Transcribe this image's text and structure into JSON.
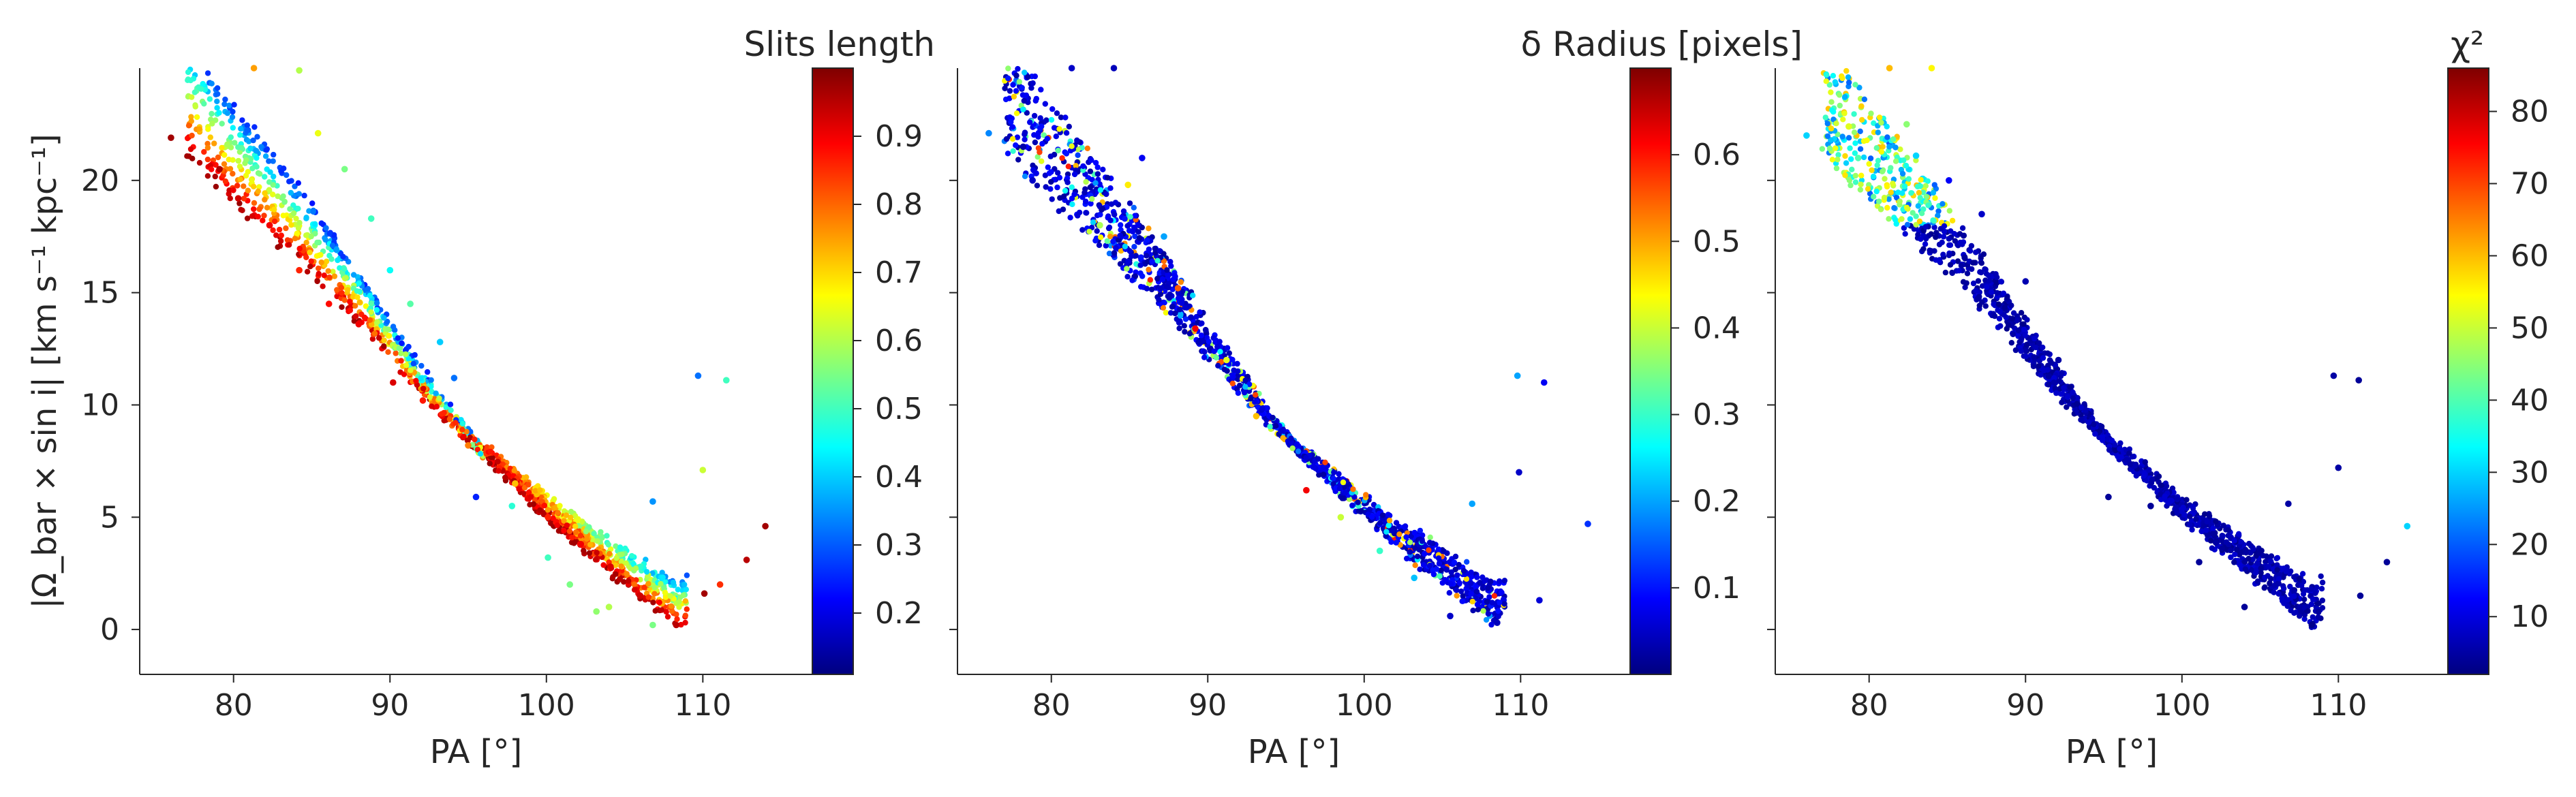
{
  "figure": {
    "panels": [
      {
        "id": "slits",
        "ylabel": "|Ω_bar × sin i|  [km s⁻¹ kpc⁻¹]",
        "xlabel": "PA [°]",
        "colorbar": {
          "title": "Slits length",
          "colormap": "jet",
          "range": [
            0.11,
            1.0
          ],
          "ticks": [
            0.2,
            0.3,
            0.4,
            0.5,
            0.6,
            0.7,
            0.8,
            0.9
          ],
          "tick_labels": [
            "0.2",
            "0.3",
            "0.4",
            "0.5",
            "0.6",
            "0.7",
            "0.8",
            "0.9"
          ]
        }
      },
      {
        "id": "delta-radius",
        "xlabel": "PA [°]",
        "colorbar": {
          "title": "δ Radius [pixels]",
          "colormap": "jet",
          "range": [
            0.0,
            0.7
          ],
          "ticks": [
            0.1,
            0.2,
            0.3,
            0.4,
            0.5,
            0.6
          ],
          "tick_labels": [
            "0.1",
            "0.2",
            "0.3",
            "0.4",
            "0.5",
            "0.6"
          ]
        }
      },
      {
        "id": "chi2",
        "xlabel": "PA [°]",
        "colorbar": {
          "title": "χ²",
          "colormap": "jet",
          "range": [
            2,
            86
          ],
          "ticks": [
            10,
            20,
            30,
            40,
            50,
            60,
            70,
            80
          ],
          "tick_labels": [
            "10",
            "20",
            "30",
            "40",
            "50",
            "60",
            "70",
            "80"
          ]
        }
      }
    ]
  },
  "chart_data": [
    {
      "type": "scatter",
      "title": "",
      "xlabel": "PA [°]",
      "ylabel": "|Ω_bar × sin i|  [km s⁻¹ kpc⁻¹]",
      "xlim": [
        74,
        117
      ],
      "ylim": [
        -2,
        25
      ],
      "xticks": [
        80,
        90,
        100,
        110
      ],
      "yticks": [
        0,
        5,
        10,
        15,
        20
      ],
      "color_variable": "Slits length",
      "color_range": [
        0.11,
        1.0
      ],
      "trend": {
        "x": [
          76,
          80,
          84,
          88,
          92,
          96,
          100,
          104,
          108.5,
          111,
          114
        ],
        "y": [
          22,
          19,
          16.5,
          13.7,
          10.5,
          7.8,
          5.0,
          2.6,
          0.1,
          1.8,
          4.6
        ]
      },
      "points": [
        [
          76.0,
          21.9,
          0.97
        ],
        [
          79.1,
          20.5,
          0.96
        ],
        [
          80.3,
          19.2,
          0.93
        ],
        [
          82.3,
          18.0,
          0.9
        ],
        [
          84.2,
          16.0,
          0.86
        ],
        [
          86.1,
          14.5,
          0.88
        ],
        [
          88.0,
          13.6,
          0.9
        ],
        [
          90.2,
          11.0,
          0.92
        ],
        [
          92.1,
          10.2,
          0.87
        ],
        [
          95.0,
          8.2,
          0.78
        ],
        [
          98.0,
          6.5,
          0.72
        ],
        [
          100.1,
          5.0,
          0.86
        ],
        [
          102.2,
          3.8,
          0.9
        ],
        [
          104.1,
          2.8,
          0.92
        ],
        [
          106.0,
          1.5,
          0.93
        ],
        [
          108.3,
          0.2,
          0.95
        ],
        [
          110.1,
          1.6,
          0.97
        ],
        [
          114.0,
          4.6,
          0.97
        ],
        [
          112.8,
          3.1,
          0.95
        ],
        [
          111.1,
          2.0,
          0.85
        ],
        [
          81.3,
          25.0,
          0.75
        ],
        [
          84.2,
          24.9,
          0.6
        ],
        [
          85.4,
          22.1,
          0.65
        ],
        [
          87.1,
          20.5,
          0.55
        ],
        [
          88.8,
          18.3,
          0.5
        ],
        [
          90.0,
          16.0,
          0.45
        ],
        [
          91.3,
          14.5,
          0.52
        ],
        [
          93.2,
          12.8,
          0.4
        ],
        [
          94.1,
          11.2,
          0.32
        ],
        [
          95.5,
          5.9,
          0.25
        ],
        [
          97.8,
          5.5,
          0.48
        ],
        [
          100.1,
          3.2,
          0.5
        ],
        [
          101.5,
          2.0,
          0.55
        ],
        [
          103.2,
          0.8,
          0.57
        ],
        [
          106.8,
          5.7,
          0.35
        ],
        [
          109.7,
          11.3,
          0.32
        ],
        [
          111.5,
          11.1,
          0.5
        ],
        [
          110.0,
          7.1,
          0.62
        ],
        [
          106.8,
          0.2,
          0.55
        ],
        [
          104.0,
          1.0,
          0.6
        ]
      ]
    },
    {
      "type": "scatter",
      "title": "",
      "xlabel": "PA [°]",
      "ylabel": "",
      "xlim": [
        74,
        117
      ],
      "ylim": [
        -2,
        25
      ],
      "xticks": [
        80,
        90,
        100,
        110
      ],
      "color_variable": "δ Radius [pixels]",
      "color_range": [
        0.0,
        0.7
      ],
      "trend": {
        "x": [
          76,
          80,
          84,
          88,
          92,
          96,
          100,
          104,
          108.5,
          111,
          114
        ],
        "y": [
          22,
          19,
          16.5,
          13.7,
          10.5,
          7.8,
          5.0,
          2.6,
          0.1,
          1.8,
          4.6
        ]
      },
      "points": [
        [
          76.0,
          22.1,
          0.18
        ],
        [
          78.2,
          21.5,
          0.03
        ],
        [
          78.8,
          20.0,
          0.05
        ],
        [
          81.3,
          25.0,
          0.05
        ],
        [
          84.0,
          25.0,
          0.04
        ],
        [
          85.8,
          21.0,
          0.08
        ],
        [
          84.9,
          19.8,
          0.45
        ],
        [
          83.1,
          18.0,
          0.38
        ],
        [
          87.2,
          17.5,
          0.2
        ],
        [
          88.1,
          15.2,
          0.55
        ],
        [
          89.2,
          13.4,
          0.62
        ],
        [
          91.2,
          12.0,
          0.42
        ],
        [
          93.1,
          9.5,
          0.48
        ],
        [
          96.3,
          6.2,
          0.62
        ],
        [
          98.5,
          5.0,
          0.4
        ],
        [
          101.0,
          3.5,
          0.3
        ],
        [
          103.2,
          2.3,
          0.22
        ],
        [
          105.5,
          0.6,
          0.05
        ],
        [
          108.5,
          0.3,
          0.04
        ],
        [
          111.2,
          1.3,
          0.06
        ],
        [
          114.3,
          4.7,
          0.12
        ],
        [
          109.8,
          11.3,
          0.2
        ],
        [
          111.5,
          11.0,
          0.08
        ],
        [
          109.9,
          7.0,
          0.05
        ],
        [
          106.9,
          5.6,
          0.2
        ]
      ]
    },
    {
      "type": "scatter",
      "title": "",
      "xlabel": "PA [°]",
      "ylabel": "",
      "xlim": [
        74,
        117
      ],
      "ylim": [
        -2,
        25
      ],
      "xticks": [
        80,
        90,
        100,
        110
      ],
      "color_variable": "χ²",
      "color_range": [
        2,
        86
      ],
      "trend": {
        "x": [
          76,
          80,
          84,
          88,
          92,
          96,
          100,
          104,
          108.5,
          111,
          114
        ],
        "y": [
          22,
          19,
          16.5,
          13.7,
          10.5,
          7.8,
          5.0,
          2.6,
          0.1,
          1.8,
          4.6
        ]
      },
      "points": [
        [
          76.0,
          22.0,
          30
        ],
        [
          78.7,
          22.4,
          52
        ],
        [
          79.3,
          21.0,
          40
        ],
        [
          81.3,
          25.0,
          60
        ],
        [
          82.4,
          22.5,
          45
        ],
        [
          84.0,
          25.0,
          55
        ],
        [
          83.0,
          21.1,
          30
        ],
        [
          85.1,
          20.0,
          12
        ],
        [
          87.2,
          18.5,
          8
        ],
        [
          90.0,
          15.5,
          6
        ],
        [
          92.1,
          12.0,
          5
        ],
        [
          95.3,
          5.9,
          4
        ],
        [
          98.0,
          5.5,
          4
        ],
        [
          101.1,
          3.0,
          4
        ],
        [
          104.0,
          1.0,
          4
        ],
        [
          108.3,
          0.2,
          3
        ],
        [
          111.4,
          1.5,
          4
        ],
        [
          113.1,
          3.0,
          4
        ],
        [
          114.4,
          4.6,
          30
        ],
        [
          109.7,
          11.3,
          5
        ],
        [
          111.3,
          11.1,
          4
        ],
        [
          110.0,
          7.2,
          5
        ],
        [
          106.8,
          5.6,
          5
        ]
      ]
    }
  ]
}
